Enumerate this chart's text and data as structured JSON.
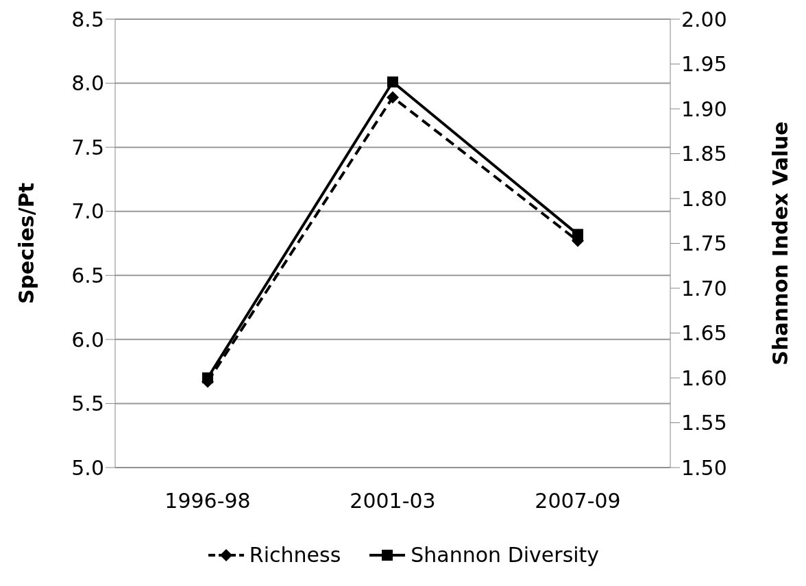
{
  "chart_data": {
    "type": "line",
    "categories": [
      "1996-98",
      "2001-03",
      "2007-09"
    ],
    "ylabel": "Species/Pt",
    "y2label": "Shannon Index Value",
    "ylim": [
      5.0,
      8.5
    ],
    "yticks": [
      {
        "value": 5,
        "label": "5.0"
      },
      "5.5",
      {
        "value": 6,
        "label": "6.0"
      },
      "6.5",
      {
        "value": 7,
        "label": "7.0"
      },
      "7.5",
      {
        "value": 8,
        "label": "8.0"
      },
      "8.5"
    ],
    "y2lim": [
      1.5,
      2.0
    ],
    "y2ticks": [
      {
        "value": 1.5,
        "label": "1.50"
      },
      {
        "value": 1.55,
        "label": "1.55"
      },
      {
        "value": 1.6,
        "label": "1.60"
      },
      {
        "value": 1.65,
        "label": "1.65"
      },
      {
        "value": 1.7,
        "label": "1.70"
      },
      {
        "value": 1.75,
        "label": "1.75"
      },
      {
        "value": 1.8,
        "label": "1.80"
      },
      {
        "value": 1.85,
        "label": "1.85"
      },
      {
        "value": 1.9,
        "label": "1.90"
      },
      {
        "value": 1.95,
        "label": "1.95"
      },
      {
        "value": 2.0,
        "label": "2.00"
      }
    ],
    "grid": "y",
    "legend": "bottom",
    "series": [
      {
        "name": "Richness",
        "color": "#000000",
        "values": [
          5.67,
          7.89,
          6.77
        ],
        "marker": "diamond",
        "line_style": "dashed"
      },
      {
        "name": "Shannon Diversity",
        "color": "#000000",
        "values": [
          1.6,
          1.93,
          1.76
        ],
        "marker": "square",
        "line_style": "solid",
        "axis": "y2"
      }
    ]
  }
}
